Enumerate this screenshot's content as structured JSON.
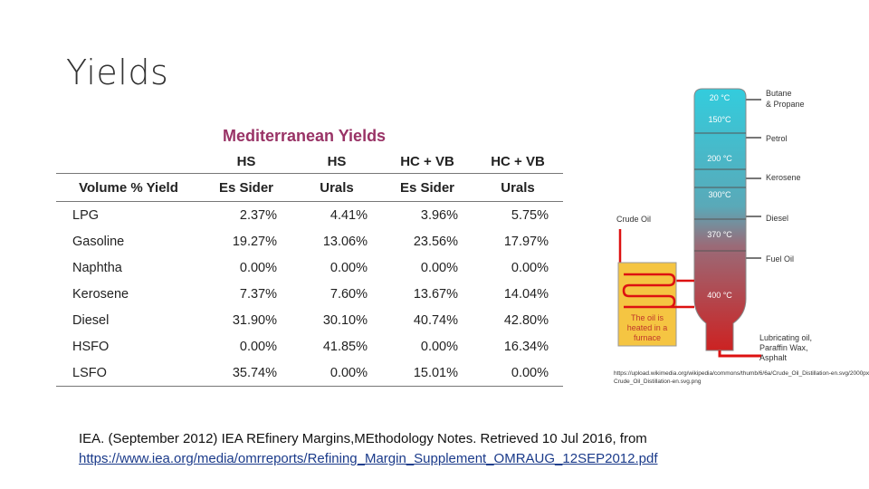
{
  "slide": {
    "title": "Yields"
  },
  "table": {
    "title": "Mediterranean Yields",
    "header_row1": [
      "",
      "HS",
      "HS",
      "HC + VB",
      "HC + VB"
    ],
    "header_row2": [
      "Volume % Yield",
      "Es Sider",
      "Urals",
      "Es Sider",
      "Urals"
    ],
    "rows": [
      {
        "name": "LPG",
        "values": [
          "2.37%",
          "4.41%",
          "3.96%",
          "5.75%"
        ]
      },
      {
        "name": "Gasoline",
        "values": [
          "19.27%",
          "13.06%",
          "23.56%",
          "17.97%"
        ]
      },
      {
        "name": "Naphtha",
        "values": [
          "0.00%",
          "0.00%",
          "0.00%",
          "0.00%"
        ]
      },
      {
        "name": "Kerosene",
        "values": [
          "7.37%",
          "7.60%",
          "13.67%",
          "14.04%"
        ]
      },
      {
        "name": "Diesel",
        "values": [
          "31.90%",
          "30.10%",
          "40.74%",
          "42.80%"
        ]
      },
      {
        "name": "HSFO",
        "values": [
          "0.00%",
          "41.85%",
          "0.00%",
          "16.34%"
        ]
      },
      {
        "name": "LSFO",
        "values": [
          "35.74%",
          "0.00%",
          "15.01%",
          "0.00%"
        ]
      }
    ]
  },
  "diagram": {
    "input_label": "Crude Oil",
    "furnace_line1": "The oil is",
    "furnace_line2": "heated in a",
    "furnace_line3": "furnace",
    "temps": [
      "20 °C",
      "150°C",
      "200 °C",
      "300°C",
      "370 °C",
      "400 °C"
    ],
    "products": {
      "butane1": "Butane",
      "butane2": "& Propane",
      "petrol": "Petrol",
      "kerosene": "Kerosene",
      "diesel": "Diesel",
      "fuel_oil": "Fuel Oil",
      "lube1": "Lubricating oil,",
      "lube2": "Paraffin Wax,",
      "lube3": "Asphalt"
    },
    "colors": {
      "top": "#33ccdd",
      "bottom": "#cc2222",
      "pipe": "#dd1111",
      "furnace": "#f5c542"
    }
  },
  "image_source": "https://upload.wikimedia.org/wikipedia/commons/thumb/6/6a/Crude_Oil_Distillation-en.svg/2000px-Crude_Oil_Distillation-en.svg.png",
  "citation": {
    "text": "IEA. (September 2012) IEA REfinery Margins,MEthodology Notes. Retrieved 10  Jul 2016, from",
    "link": "https://www.iea.org/media/omrreports/Refining_Margin_Supplement_OMRAUG_12SEP2012.pdf"
  }
}
